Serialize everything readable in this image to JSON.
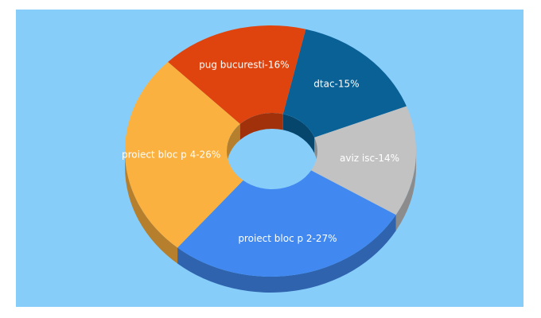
{
  "chart_data": {
    "type": "donut3d",
    "categories": [
      "dtac-15%",
      "aviz isc-14%",
      "proiect bloc p 2-27%",
      "proiect bloc p 4-26%",
      "pug bucuresti-16%"
    ],
    "values": [
      15,
      14,
      27,
      26,
      16
    ],
    "colors": [
      "#0a6196",
      "#c2c2c2",
      "#4189f0",
      "#fbb13f",
      "#e0440e"
    ]
  }
}
